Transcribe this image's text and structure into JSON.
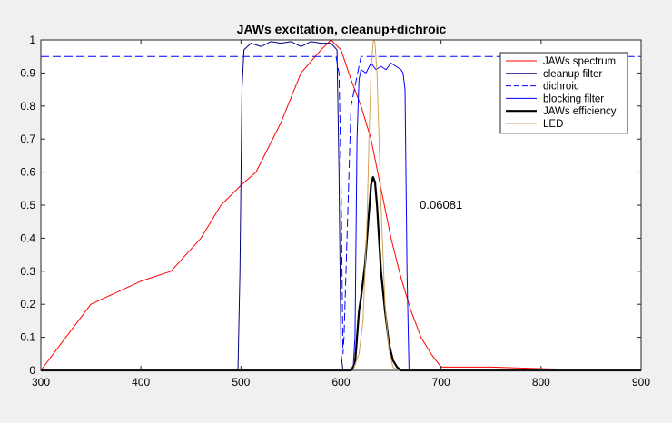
{
  "chart_data": {
    "type": "line",
    "title": "JAWs excitation, cleanup+dichroic",
    "xlabel": "",
    "ylabel": "",
    "xlim": [
      300,
      900
    ],
    "ylim": [
      0,
      1
    ],
    "xticks": [
      300,
      400,
      500,
      600,
      700,
      800,
      900
    ],
    "yticks": [
      0,
      0.1,
      0.2,
      0.3,
      0.4,
      0.5,
      0.6,
      0.7,
      0.8,
      0.9,
      1
    ],
    "xtick_labels": [
      "300",
      "400",
      "500",
      "600",
      "700",
      "800",
      "900"
    ],
    "ytick_labels": [
      "0",
      "0.1",
      "0.2",
      "0.3",
      "0.4",
      "0.5",
      "0.6",
      "0.7",
      "0.8",
      "0.9",
      "1"
    ],
    "grid": false,
    "legend_position": "top-right",
    "annotation": {
      "text": "0.06081",
      "x": 700,
      "y": 0.5
    },
    "series": [
      {
        "name": "JAWs spectrum",
        "color": "#ff0000",
        "dash": "solid",
        "width": 1,
        "x": [
          300,
          350,
          400,
          430,
          460,
          480,
          500,
          515,
          540,
          560,
          580,
          590,
          600,
          610,
          620,
          630,
          640,
          650,
          660,
          670,
          680,
          690,
          700,
          750,
          800,
          850,
          900
        ],
        "y": [
          0,
          0.2,
          0.27,
          0.3,
          0.4,
          0.5,
          0.56,
          0.6,
          0.75,
          0.9,
          0.97,
          1.0,
          0.97,
          0.88,
          0.8,
          0.7,
          0.55,
          0.4,
          0.28,
          0.18,
          0.1,
          0.05,
          0.01,
          0.01,
          0.005,
          0.002,
          0
        ]
      },
      {
        "name": "cleanup filter",
        "color": "#000080",
        "dash": "solid",
        "width": 1,
        "x": [
          300,
          497,
          499,
          501,
          503,
          510,
          520,
          530,
          540,
          550,
          560,
          570,
          580,
          590,
          596,
          598,
          600,
          602,
          620,
          680,
          900
        ],
        "y": [
          0,
          0,
          0.3,
          0.85,
          0.97,
          0.99,
          0.98,
          0.995,
          0.99,
          0.995,
          0.98,
          0.995,
          0.99,
          0.99,
          0.97,
          0.6,
          0.05,
          0,
          0,
          0,
          0
        ]
      },
      {
        "name": "dichroic",
        "color": "#0000ff",
        "dash": "dashed",
        "width": 1,
        "x": [
          300,
          590,
          595,
          598,
          600,
          601,
          602,
          603,
          605,
          610,
          620,
          900
        ],
        "y": [
          0.95,
          0.95,
          0.95,
          0.9,
          0.6,
          0.3,
          0.05,
          0.1,
          0.3,
          0.8,
          0.95,
          0.95
        ]
      },
      {
        "name": "blocking filter",
        "color": "#0000ff",
        "dash": "solid",
        "width": 1,
        "x": [
          300,
          612,
          614,
          616,
          618,
          620,
          625,
          630,
          635,
          640,
          645,
          650,
          655,
          660,
          662,
          664,
          666,
          668,
          900
        ],
        "y": [
          0,
          0,
          0.1,
          0.7,
          0.88,
          0.91,
          0.9,
          0.93,
          0.91,
          0.92,
          0.91,
          0.93,
          0.92,
          0.91,
          0.9,
          0.85,
          0.3,
          0,
          0
        ]
      },
      {
        "name": "JAWs efficiency",
        "color": "#000000",
        "dash": "solid",
        "width": 2.2,
        "x": [
          300,
          610,
          614,
          616,
          618,
          620,
          624,
          628,
          630,
          632,
          634,
          636,
          638,
          640,
          644,
          648,
          652,
          656,
          660,
          900
        ],
        "y": [
          0,
          0,
          0.02,
          0.1,
          0.18,
          0.22,
          0.32,
          0.48,
          0.56,
          0.585,
          0.57,
          0.5,
          0.4,
          0.3,
          0.18,
          0.08,
          0.03,
          0.01,
          0,
          0
        ]
      },
      {
        "name": "LED",
        "color": "#d2a35a",
        "dash": "solid",
        "width": 1,
        "x": [
          300,
          612,
          618,
          622,
          626,
          628,
          630,
          632,
          633,
          634,
          636,
          638,
          640,
          644,
          648,
          652,
          656,
          900
        ],
        "y": [
          0,
          0,
          0.05,
          0.15,
          0.45,
          0.7,
          0.9,
          0.99,
          1.0,
          0.99,
          0.9,
          0.7,
          0.5,
          0.2,
          0.06,
          0.01,
          0,
          0
        ]
      }
    ]
  }
}
